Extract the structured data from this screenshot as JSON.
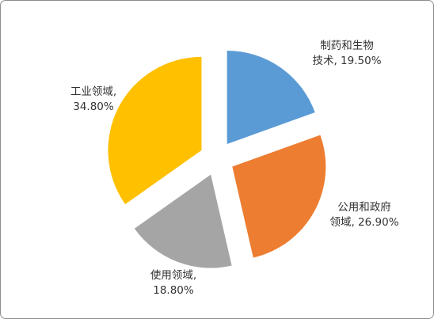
{
  "chart_data": {
    "type": "pie",
    "exploded": true,
    "slices": [
      {
        "label_lines": [
          "制药和生物",
          "技术, 19.50%"
        ],
        "category": "制药和生物技术",
        "value": 19.5,
        "color": "#5b9bd5"
      },
      {
        "label_lines": [
          "公用和政府",
          "领域, 26.90%"
        ],
        "category": "公用和政府领域",
        "value": 26.9,
        "color": "#ed7d31"
      },
      {
        "label_lines": [
          "使用领域,",
          "18.80%"
        ],
        "category": "使用领域",
        "value": 18.8,
        "color": "#a5a5a5"
      },
      {
        "label_lines": [
          "工业领域,",
          "34.80%"
        ],
        "category": "工业领域",
        "value": 34.8,
        "color": "#ffc000"
      }
    ],
    "legend": "none",
    "title": ""
  }
}
